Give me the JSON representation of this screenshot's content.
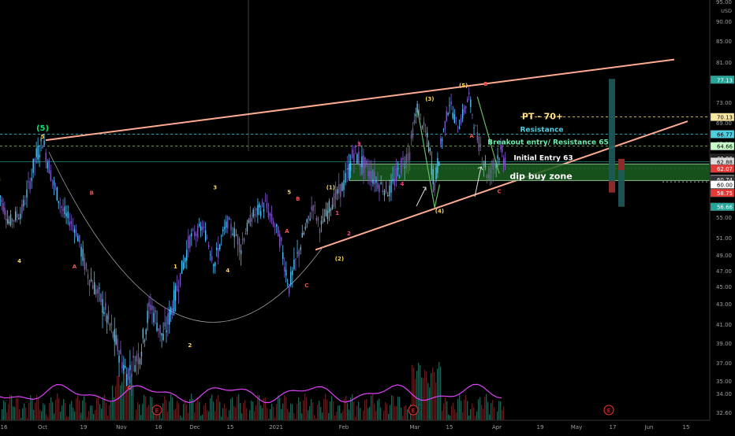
{
  "chart_data": {
    "type": "candlestick",
    "currency": "USD",
    "price_ticks": [
      "95.00",
      "90.00",
      "85.00",
      "81.00",
      "77.00",
      "73.00",
      "69.00",
      "65.00",
      "61.00",
      "57.00",
      "55.00",
      "51.00",
      "49.00",
      "47.00",
      "45.00",
      "43.00",
      "41.00",
      "39.00",
      "37.00",
      "35.00",
      "34.00",
      "32.60"
    ],
    "ylim": [
      32.6,
      95
    ],
    "time_ticks": [
      "16",
      "Oct",
      "19",
      "Nov",
      "16",
      "Dec",
      "15",
      "2021",
      "Feb",
      "Mar",
      "15",
      "Apr",
      "19",
      "May",
      "17",
      "Jun",
      "15"
    ],
    "price_tags": [
      {
        "label": "77.13",
        "value": 77.13,
        "color": "#26a69a"
      },
      {
        "label": "70.13",
        "value": 70.13,
        "color": "#f9e79f"
      },
      {
        "label": "66.77",
        "value": 66.77,
        "color": "#4dd0e1"
      },
      {
        "label": "64.66",
        "value": 64.66,
        "color": "#c8ffc8"
      },
      {
        "label": "63.28",
        "value": 63.28,
        "color": "#222222"
      },
      {
        "label": "62.88",
        "value": 62.88,
        "color": "#dddddd"
      },
      {
        "label": "62.07",
        "value": 62.07,
        "color": "#e53935"
      },
      {
        "label": "60.84",
        "value": 60.84,
        "color": "#e8f5e9"
      },
      {
        "label": "60.76",
        "value": 60.76,
        "color": "#bbbbbb"
      },
      {
        "label": "60.74",
        "value": 60.74,
        "color": "#333333"
      },
      {
        "label": "60.00",
        "value": 60.0,
        "color": "#ffffff"
      },
      {
        "label": "58.75",
        "value": 58.75,
        "color": "#e53935"
      },
      {
        "label": "56.66",
        "value": 56.66,
        "color": "#26a69a"
      }
    ],
    "price_path": [
      {
        "t": "2020-09-14",
        "v": 59
      },
      {
        "t": "2020-09-18",
        "v": 54
      },
      {
        "t": "2020-09-23",
        "v": 56
      },
      {
        "t": "2020-09-28",
        "v": 63
      },
      {
        "t": "2020-10-01",
        "v": 65.5
      },
      {
        "t": "2020-10-06",
        "v": 60
      },
      {
        "t": "2020-10-10",
        "v": 56
      },
      {
        "t": "2020-10-15",
        "v": 53
      },
      {
        "t": "2020-10-20",
        "v": 47
      },
      {
        "t": "2020-10-26",
        "v": 43
      },
      {
        "t": "2020-10-31",
        "v": 39
      },
      {
        "t": "2020-11-04",
        "v": 35.8
      },
      {
        "t": "2020-11-09",
        "v": 38
      },
      {
        "t": "2020-11-13",
        "v": 43
      },
      {
        "t": "2020-11-18",
        "v": 39.5
      },
      {
        "t": "2020-11-23",
        "v": 44
      },
      {
        "t": "2020-11-29",
        "v": 51
      },
      {
        "t": "2020-12-04",
        "v": 53
      },
      {
        "t": "2020-12-09",
        "v": 48
      },
      {
        "t": "2020-12-14",
        "v": 54
      },
      {
        "t": "2020-12-19",
        "v": 50
      },
      {
        "t": "2020-12-23",
        "v": 55
      },
      {
        "t": "2020-12-28",
        "v": 57
      },
      {
        "t": "2021-01-02",
        "v": 52
      },
      {
        "t": "2021-01-07",
        "v": 45
      },
      {
        "t": "2021-01-13",
        "v": 51
      },
      {
        "t": "2021-01-18",
        "v": 57
      },
      {
        "t": "2021-01-21",
        "v": 53
      },
      {
        "t": "2021-01-26",
        "v": 57
      },
      {
        "t": "2021-02-01",
        "v": 60
      },
      {
        "t": "2021-02-05",
        "v": 64
      },
      {
        "t": "2021-02-10",
        "v": 62
      },
      {
        "t": "2021-02-15",
        "v": 60
      },
      {
        "t": "2021-02-19",
        "v": 59
      },
      {
        "t": "2021-02-23",
        "v": 62
      },
      {
        "t": "2021-02-27",
        "v": 64
      },
      {
        "t": "2021-03-02",
        "v": 72
      },
      {
        "t": "2021-03-06",
        "v": 66
      },
      {
        "t": "2021-03-09",
        "v": 60
      },
      {
        "t": "2021-03-12",
        "v": 66
      },
      {
        "t": "2021-03-15",
        "v": 73
      },
      {
        "t": "2021-03-18",
        "v": 68
      },
      {
        "t": "2021-03-22",
        "v": 74
      },
      {
        "t": "2021-03-25",
        "v": 66
      },
      {
        "t": "2021-03-29",
        "v": 61
      },
      {
        "t": "2021-04-02",
        "v": 64
      },
      {
        "t": "2021-04-05",
        "v": 63
      }
    ],
    "wave_labels": [
      {
        "text": "(5)",
        "t": "2020-10-01",
        "v": 67.5,
        "color": "#00e676"
      },
      {
        "text": "5",
        "t": "2020-10-01",
        "v": 65.9,
        "color": "#ffd54f"
      },
      {
        "text": "3",
        "t": "2020-09-14",
        "v": 60.5,
        "color": "#ffd54f"
      },
      {
        "text": "4",
        "t": "2020-09-22",
        "v": 48,
        "color": "#ffd54f"
      },
      {
        "text": "B",
        "t": "2020-10-22",
        "v": 58.5,
        "color": "#ef5350"
      },
      {
        "text": "A",
        "t": "2020-10-15",
        "v": 47.3,
        "color": "#ef5350"
      },
      {
        "text": "1",
        "t": "2020-11-23",
        "v": 47.3,
        "color": "#ffd54f"
      },
      {
        "text": "2",
        "t": "2020-11-29",
        "v": 38.6,
        "color": "#ffd54f"
      },
      {
        "text": "C",
        "t": "2020-11-05",
        "v": 34.3,
        "color": "#ef5350"
      },
      {
        "text": "3",
        "t": "2020-12-09",
        "v": 59.3,
        "color": "#ffd54f"
      },
      {
        "text": "4",
        "t": "2020-12-14",
        "v": 46.8,
        "color": "#ffd54f"
      },
      {
        "text": "5",
        "t": "2021-01-07",
        "v": 58.6,
        "color": "#ffd54f"
      },
      {
        "text": "B",
        "t": "2021-01-11",
        "v": 57.6,
        "color": "#ef5350"
      },
      {
        "text": "A",
        "t": "2021-01-06",
        "v": 51.9,
        "color": "#ef5350"
      },
      {
        "text": "C",
        "t": "2021-01-15",
        "v": 44.9,
        "color": "#ef5350"
      },
      {
        "text": "(1)",
        "t": "2021-01-26",
        "v": 59.3,
        "color": "#ffd54f"
      },
      {
        "text": "1",
        "t": "2021-01-29",
        "v": 55.4,
        "color": "#ff4081"
      },
      {
        "text": "2",
        "t": "2021-02-03",
        "v": 51.5,
        "color": "#ff4081"
      },
      {
        "text": "(2)",
        "t": "2021-01-30",
        "v": 48.3,
        "color": "#ffd54f"
      },
      {
        "text": "3",
        "t": "2021-02-07",
        "v": 64.7,
        "color": "#ff4081"
      },
      {
        "text": "4",
        "t": "2021-02-24",
        "v": 59.8,
        "color": "#ff4081"
      },
      {
        "text": "(3)",
        "t": "2021-03-07",
        "v": 73.3,
        "color": "#ffd54f"
      },
      {
        "text": "(4)",
        "t": "2021-03-11",
        "v": 55.7,
        "color": "#ffd54f"
      },
      {
        "text": "(5)",
        "t": "2021-03-20",
        "v": 75.7,
        "color": "#ffd54f"
      },
      {
        "text": "B",
        "t": "2021-03-28",
        "v": 76.0,
        "color": "#ef5350"
      },
      {
        "text": "A",
        "t": "2021-03-23",
        "v": 66.1,
        "color": "#ef5350"
      },
      {
        "text": "C",
        "t": "2021-04-02",
        "v": 58.7,
        "color": "#ef5350"
      }
    ],
    "annotations": {
      "pt": "PT - 70+",
      "resistance": "Resistance",
      "breakout": "Breakout entry/ Resistance 65",
      "initial": "Initial Entry 63",
      "dip": "dip buy zone"
    },
    "event_markers": [
      "E",
      "E",
      "E"
    ],
    "grid": false,
    "legend": "none"
  }
}
